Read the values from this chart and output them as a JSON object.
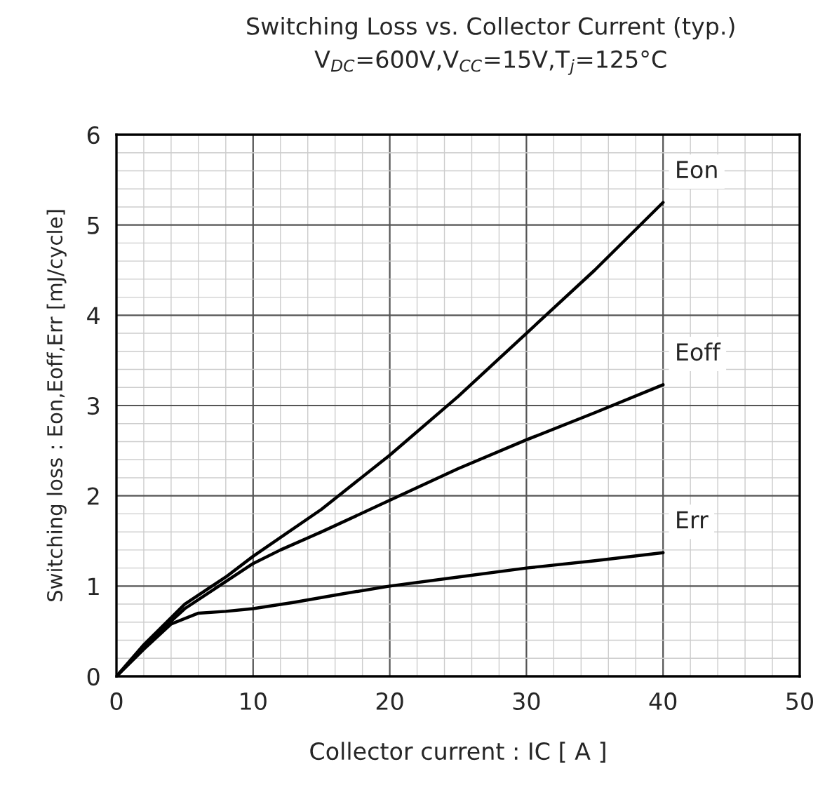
{
  "chart_data": {
    "type": "line",
    "title": "Switching Loss vs. Collector Current (typ.)\nV$_{DC}$=600V,V$_{CC}$=15V,T$_{j}$=125°C",
    "xlabel": "Collector current : IC [ A ]",
    "ylabel": "Switching loss : Eon,Eoff,Err [mJ/cycle]",
    "series": [
      {
        "name": "Eon",
        "color": "#000000",
        "x": [
          0,
          2,
          5,
          8,
          10,
          15,
          20,
          25,
          30,
          35,
          40
        ],
        "values": [
          0,
          0.35,
          0.8,
          1.1,
          1.33,
          1.85,
          2.45,
          3.1,
          3.8,
          4.5,
          5.25
        ]
      },
      {
        "name": "Eoff",
        "color": "#000000",
        "x": [
          0,
          2,
          5,
          8,
          10,
          12,
          15,
          20,
          25,
          30,
          35,
          40
        ],
        "values": [
          0,
          0.33,
          0.75,
          1.05,
          1.25,
          1.4,
          1.6,
          1.95,
          2.3,
          2.62,
          2.92,
          3.23
        ]
      },
      {
        "name": "Err",
        "color": "#000000",
        "x": [
          0,
          2,
          4,
          6,
          8,
          10,
          13,
          16,
          20,
          25,
          30,
          35,
          40
        ],
        "values": [
          0,
          0.3,
          0.58,
          0.7,
          0.72,
          0.75,
          0.82,
          0.9,
          1.0,
          1.1,
          1.2,
          1.28,
          1.37
        ]
      }
    ],
    "xlim": [
      0,
      50
    ],
    "ylim": [
      0,
      6
    ],
    "xticks": [
      0,
      {
        "value": 2,
        "label": null
      },
      {
        "value": 4,
        "label": null
      },
      {
        "value": 6,
        "label": null
      },
      {
        "value": 8,
        "label": null
      },
      10,
      {
        "value": 12,
        "label": null
      },
      {
        "value": 14,
        "label": null
      },
      {
        "value": 16,
        "label": null
      },
      {
        "value": 18,
        "label": null
      },
      20,
      {
        "value": 22,
        "label": null
      },
      {
        "value": 24,
        "label": null
      },
      {
        "value": 26,
        "label": null
      },
      {
        "value": 28,
        "label": null
      },
      30,
      {
        "value": 32,
        "label": null
      },
      {
        "value": 34,
        "label": null
      },
      {
        "value": 36,
        "label": null
      },
      {
        "value": 38,
        "label": null
      },
      40,
      {
        "value": 42,
        "label": null
      },
      {
        "value": 44,
        "label": null
      },
      {
        "value": 46,
        "label": null
      },
      {
        "value": 48,
        "label": null
      },
      50
    ],
    "yticks": [
      0,
      {
        "value": 0.2,
        "label": null
      },
      {
        "value": 0.4,
        "label": null
      },
      {
        "value": 0.6,
        "label": null
      },
      {
        "value": 0.8,
        "label": null
      },
      1,
      {
        "value": 1.2,
        "label": null
      },
      {
        "value": 1.4,
        "label": null
      },
      {
        "value": 1.6,
        "label": null
      },
      {
        "value": 1.8,
        "label": null
      },
      2,
      {
        "value": 2.2,
        "label": null
      },
      {
        "value": 2.4,
        "label": null
      },
      {
        "value": 2.6,
        "label": null
      },
      {
        "value": 2.8,
        "label": null
      },
      3,
      {
        "value": 3.2,
        "label": null
      },
      {
        "value": 3.4,
        "label": null
      },
      {
        "value": 3.6,
        "label": null
      },
      {
        "value": 3.8,
        "label": null
      },
      4,
      {
        "value": 4.2,
        "label": null
      },
      {
        "value": 4.4,
        "label": null
      },
      {
        "value": 4.6,
        "label": null
      },
      {
        "value": 4.8,
        "label": null
      },
      5,
      {
        "value": 5.2,
        "label": null
      },
      {
        "value": 5.4,
        "label": null
      },
      {
        "value": 5.6,
        "label": null
      },
      {
        "value": 5.8,
        "label": null
      },
      6
    ],
    "grid": true,
    "legend": false,
    "marker": "none",
    "line_style": "solid"
  }
}
